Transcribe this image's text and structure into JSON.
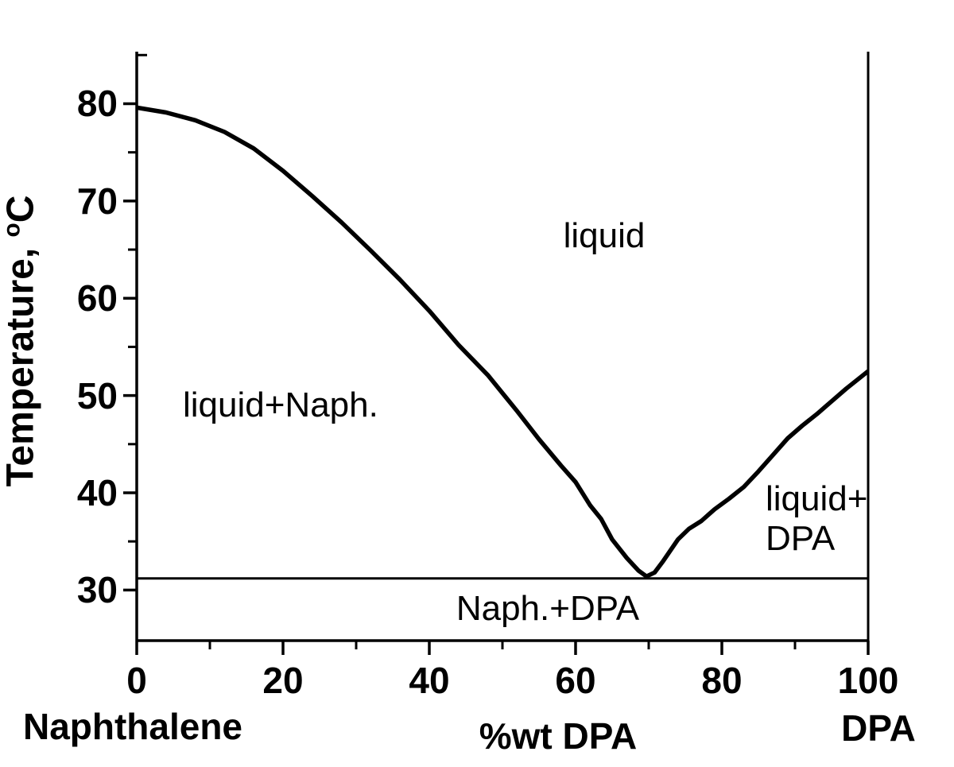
{
  "figure": {
    "background": "#ffffff",
    "ink_color": "#000000"
  },
  "chart_data": {
    "type": "line",
    "title": "",
    "xlabel": "%wt DPA",
    "ylabel_prefix": "Temperature, ",
    "ylabel_sup": "o",
    "ylabel_suffix": "C",
    "x_left_endpoint_label": "Naphthalene",
    "x_right_endpoint_label": "DPA",
    "xlim": [
      0,
      100
    ],
    "ylim": [
      24.8,
      85.35
    ],
    "grid": false,
    "legend": false,
    "x_ticks_major": [
      0,
      20,
      40,
      60,
      80,
      100
    ],
    "x_ticks_minor": [
      10,
      30,
      50,
      70,
      90
    ],
    "y_ticks_major": [
      30,
      40,
      50,
      60,
      70,
      80
    ],
    "y_ticks_minor": [
      35,
      45,
      55,
      65,
      75
    ],
    "y_tick_top_inner": 85,
    "eutectic_point": {
      "x_wt_pct": 69.7,
      "temperature_C": 31.3
    },
    "series": [
      {
        "name": "liquidus",
        "stroke_width": 5.5,
        "points": [
          [
            0,
            79.6
          ],
          [
            4,
            79.1
          ],
          [
            8,
            78.3
          ],
          [
            12,
            77.1
          ],
          [
            16,
            75.4
          ],
          [
            20,
            73.1
          ],
          [
            24,
            70.5
          ],
          [
            28,
            67.8
          ],
          [
            32,
            64.9
          ],
          [
            36,
            61.9
          ],
          [
            40,
            58.7
          ],
          [
            44,
            55.2
          ],
          [
            48,
            52.1
          ],
          [
            52,
            48.4
          ],
          [
            55,
            45.5
          ],
          [
            58,
            42.8
          ],
          [
            60,
            41.1
          ],
          [
            62,
            38.7
          ],
          [
            63.5,
            37.3
          ],
          [
            65,
            35.2
          ],
          [
            67,
            33.3
          ],
          [
            68.6,
            32.0
          ],
          [
            69.7,
            31.4
          ],
          [
            70.8,
            31.8
          ],
          [
            72,
            33.0
          ],
          [
            74,
            35.2
          ],
          [
            75.5,
            36.3
          ],
          [
            77.2,
            37.1
          ],
          [
            79,
            38.3
          ],
          [
            81,
            39.4
          ],
          [
            83,
            40.6
          ],
          [
            85,
            42.2
          ],
          [
            87,
            43.9
          ],
          [
            89,
            45.6
          ],
          [
            91,
            46.9
          ],
          [
            93,
            48.1
          ],
          [
            95,
            49.4
          ],
          [
            97,
            50.7
          ],
          [
            100,
            52.5
          ]
        ]
      },
      {
        "name": "eutectic-line",
        "stroke_width": 3,
        "points": [
          [
            0,
            31.2
          ],
          [
            100,
            31.2
          ]
        ]
      }
    ],
    "annotations": [
      {
        "text": "liquid"
      },
      {
        "text": "liquid+Naph."
      },
      {
        "text": "liquid+"
      },
      {
        "text": "DPA"
      },
      {
        "text": "Naph.+DPA"
      }
    ]
  }
}
